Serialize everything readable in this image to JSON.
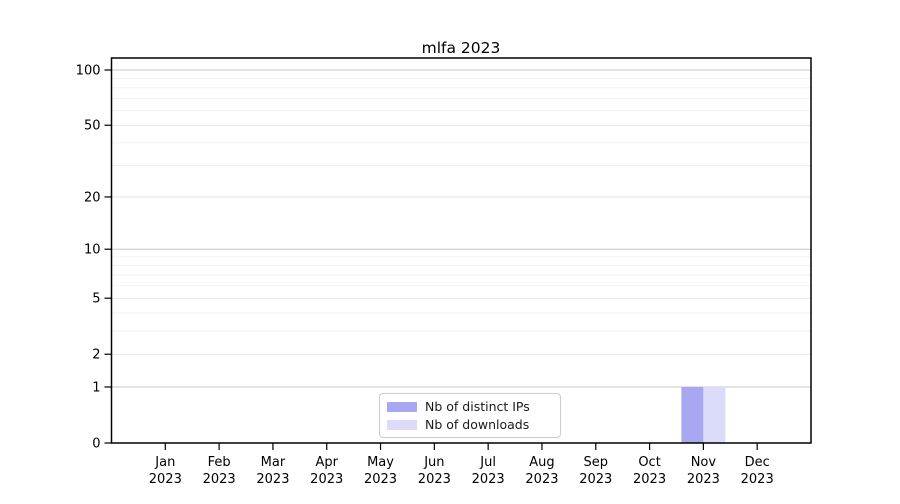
{
  "chart_data": {
    "type": "bar",
    "title": "mlfa 2023",
    "categories": [
      "Jan",
      "Feb",
      "Mar",
      "Apr",
      "May",
      "Jun",
      "Jul",
      "Aug",
      "Sep",
      "Oct",
      "Nov",
      "Dec"
    ],
    "category_year": "2023",
    "series": [
      {
        "name": "Nb of distinct IPs",
        "color": "#a7a7f2",
        "values": [
          0,
          0,
          0,
          0,
          0,
          0,
          0,
          0,
          0,
          0,
          1,
          0
        ]
      },
      {
        "name": "Nb of downloads",
        "color": "#dcdcfa",
        "values": [
          0,
          0,
          0,
          0,
          0,
          0,
          0,
          0,
          0,
          0,
          1,
          0
        ]
      }
    ],
    "yticks": [
      0,
      1,
      2,
      5,
      10,
      20,
      50,
      100
    ],
    "minor_grid_values": [
      2,
      3,
      4,
      5,
      6,
      7,
      8,
      9,
      20,
      30,
      40,
      50,
      60,
      70,
      80,
      90
    ],
    "major_grid_values": [
      1,
      10,
      100
    ],
    "ylim": [
      0,
      116
    ],
    "yscale": "log1p",
    "grid": "horizontal",
    "legend_position": "lower-center",
    "colors": {
      "spine": "#000000",
      "major_grid": "#c8c8c8",
      "labeled_minor_grid": "#e2e2e2",
      "minor_grid": "#efefef",
      "legend_border": "#cccccc"
    }
  }
}
